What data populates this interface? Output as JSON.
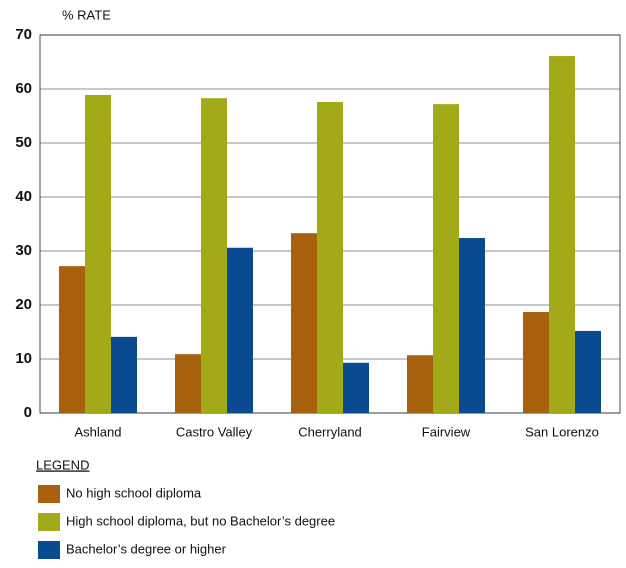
{
  "chart_data": {
    "type": "bar",
    "y_label": "% RATE",
    "categories": [
      "Ashland",
      "Castro Valley",
      "Cherryland",
      "Fairview",
      "San Lorenzo"
    ],
    "series": [
      {
        "name": "No high school diploma",
        "color": "#a8620f",
        "values": [
          27.2,
          10.9,
          33.3,
          10.7,
          18.7
        ]
      },
      {
        "name": "High school diploma, but no Bachelor’s degree",
        "color": "#a2aa1a",
        "values": [
          58.9,
          58.3,
          57.6,
          57.2,
          66.1
        ]
      },
      {
        "name": "Bachelor’s degree or higher",
        "color": "#0a4a91",
        "values": [
          14.1,
          30.6,
          9.3,
          32.4,
          15.2
        ]
      }
    ],
    "ylim": [
      0,
      70
    ],
    "yticks": [
      0,
      10,
      20,
      30,
      40,
      50,
      60,
      70
    ],
    "grid": true,
    "legend_title": "LEGEND"
  }
}
